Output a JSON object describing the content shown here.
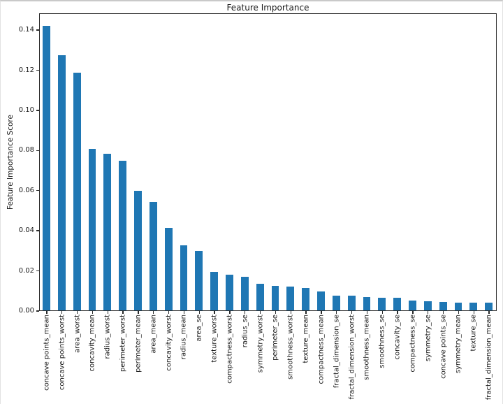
{
  "figure": {
    "title": "Feature Importance",
    "ylabel": "Feature Importance Score"
  },
  "chart_data": {
    "type": "bar",
    "title": "Feature Importance",
    "xlabel": "",
    "ylabel": "Feature Importance Score",
    "categories": [
      "concave points_mean",
      "concave points_worst",
      "area_worst",
      "concavity_mean",
      "radius_worst",
      "perimeter_worst",
      "perimeter_mean",
      "area_mean",
      "concavity_worst",
      "radius_mean",
      "area_se",
      "texture_worst",
      "compactness_worst",
      "radius_se",
      "symmetry_worst",
      "perimeter_se",
      "smoothness_worst",
      "texture_mean",
      "compactness_mean",
      "fractal_dimension_se",
      "fractal_dimension_worst",
      "smoothness_mean",
      "smoothness_se",
      "concavity_se",
      "compactness_se",
      "symmetry_se",
      "concave points_se",
      "symmetry_mean",
      "texture_se",
      "fractal_dimension_mean"
    ],
    "values": [
      0.1417,
      0.127,
      0.1183,
      0.0805,
      0.078,
      0.0745,
      0.0595,
      0.054,
      0.041,
      0.0325,
      0.0295,
      0.019,
      0.0177,
      0.0167,
      0.0132,
      0.0122,
      0.012,
      0.0111,
      0.0095,
      0.0074,
      0.0072,
      0.0066,
      0.0064,
      0.0062,
      0.0049,
      0.0045,
      0.0041,
      0.004,
      0.0039,
      0.0038
    ],
    "ylim": [
      0,
      0.1484
    ],
    "yticks": [
      0,
      0.02,
      0.04,
      0.06,
      0.08,
      0.1,
      0.12,
      0.14
    ],
    "ytick_format_decimals": 2,
    "x_tick_rotation": 90,
    "bar_color": "#1f77b4",
    "grid": false,
    "legend": false
  }
}
